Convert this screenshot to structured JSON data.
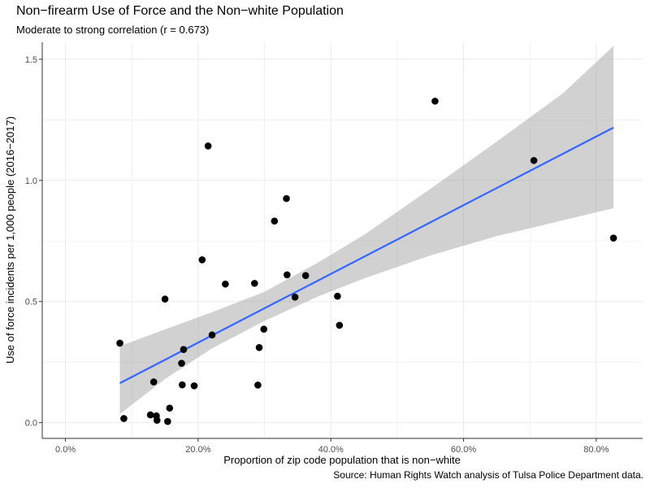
{
  "chart_data": {
    "type": "scatter",
    "title": "Non−firearm Use of Force and the Non−white Population",
    "subtitle": "Moderate to strong correlation (r = 0.673)",
    "caption": "Source: Human Rights Watch analysis of Tulsa Police Department data.",
    "xlabel": "Proportion of zip code population that is non−white",
    "ylabel": "Use of force incidents per 1,000 people (2016−2017)",
    "xlim": [
      -0.035,
      0.87
    ],
    "ylim": [
      -0.065,
      1.57
    ],
    "x_ticks": [
      0,
      0.2,
      0.4,
      0.6,
      0.8
    ],
    "x_tick_labels": [
      "0.0%",
      "20.0%",
      "40.0%",
      "60.0%",
      "80.0%"
    ],
    "y_ticks": [
      0,
      0.5,
      1.0,
      1.5
    ],
    "y_tick_labels": [
      "0.0",
      "0.5",
      "1.0",
      "1.5"
    ],
    "grid": true,
    "points": [
      {
        "x": 0.082,
        "y": 0.328
      },
      {
        "x": 0.088,
        "y": 0.017
      },
      {
        "x": 0.128,
        "y": 0.032
      },
      {
        "x": 0.133,
        "y": 0.168
      },
      {
        "x": 0.137,
        "y": 0.028
      },
      {
        "x": 0.138,
        "y": 0.01
      },
      {
        "x": 0.15,
        "y": 0.51
      },
      {
        "x": 0.154,
        "y": 0.005
      },
      {
        "x": 0.157,
        "y": 0.06
      },
      {
        "x": 0.175,
        "y": 0.245
      },
      {
        "x": 0.176,
        "y": 0.156
      },
      {
        "x": 0.178,
        "y": 0.302
      },
      {
        "x": 0.194,
        "y": 0.152
      },
      {
        "x": 0.206,
        "y": 0.672
      },
      {
        "x": 0.215,
        "y": 1.142
      },
      {
        "x": 0.221,
        "y": 0.362
      },
      {
        "x": 0.241,
        "y": 0.572
      },
      {
        "x": 0.285,
        "y": 0.575
      },
      {
        "x": 0.29,
        "y": 0.155
      },
      {
        "x": 0.292,
        "y": 0.31
      },
      {
        "x": 0.299,
        "y": 0.386
      },
      {
        "x": 0.315,
        "y": 0.832
      },
      {
        "x": 0.333,
        "y": 0.925
      },
      {
        "x": 0.334,
        "y": 0.61
      },
      {
        "x": 0.346,
        "y": 0.518
      },
      {
        "x": 0.362,
        "y": 0.607
      },
      {
        "x": 0.41,
        "y": 0.522
      },
      {
        "x": 0.413,
        "y": 0.402
      },
      {
        "x": 0.557,
        "y": 1.327
      },
      {
        "x": 0.706,
        "y": 1.082
      },
      {
        "x": 0.826,
        "y": 0.762
      }
    ],
    "fit": {
      "method": "linear",
      "x": [
        0.082,
        0.826
      ],
      "y": [
        0.163,
        1.218
      ]
    },
    "confidence_band": {
      "x": [
        0.082,
        0.15,
        0.22,
        0.3,
        0.38,
        0.45,
        0.55,
        0.65,
        0.75,
        0.826
      ],
      "lower": [
        0.035,
        0.18,
        0.305,
        0.42,
        0.52,
        0.595,
        0.69,
        0.77,
        0.835,
        0.885
      ],
      "upper": [
        0.316,
        0.385,
        0.455,
        0.54,
        0.66,
        0.775,
        0.965,
        1.16,
        1.36,
        1.555
      ]
    },
    "colors": {
      "point": "#000000",
      "fit": "#3366FF",
      "band": "#999999",
      "grid": "#ebebeb",
      "axis": "#333333"
    }
  }
}
